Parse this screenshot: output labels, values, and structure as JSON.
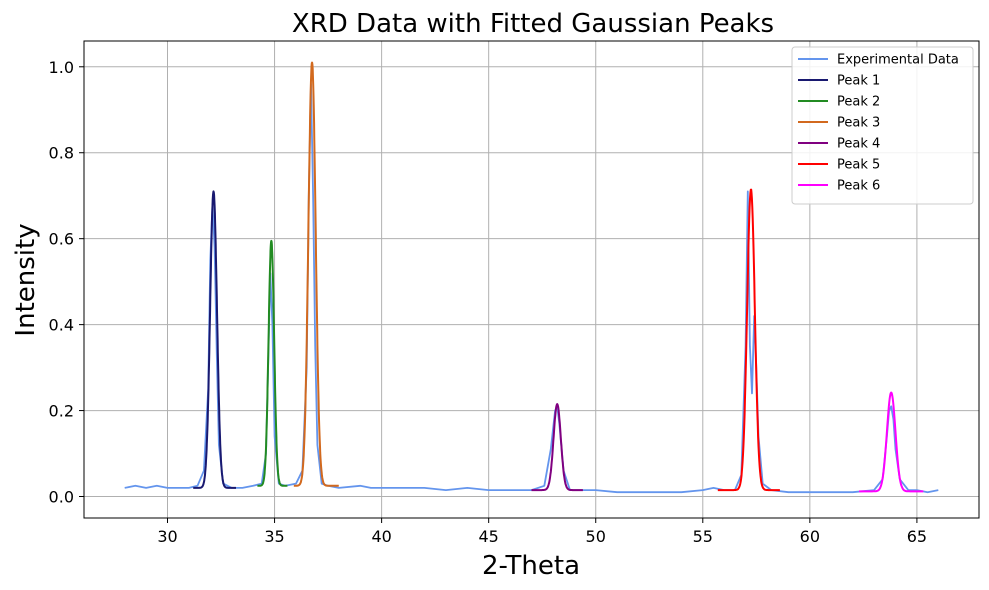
{
  "chart_data": {
    "type": "line",
    "title": "XRD Data with Fitted Gaussian Peaks",
    "xlabel": "2-Theta",
    "ylabel": "Intensity",
    "xlim": [
      26.1,
      67.9
    ],
    "ylim": [
      -0.05,
      1.06
    ],
    "xticks": [
      30,
      35,
      40,
      45,
      50,
      55,
      60,
      65
    ],
    "yticks": [
      0.0,
      0.2,
      0.4,
      0.6,
      0.8,
      1.0
    ],
    "ytick_labels": [
      "0.0",
      "0.2",
      "0.4",
      "0.6",
      "0.8",
      "1.0"
    ],
    "grid": true,
    "legend_position": "top-right",
    "series": [
      {
        "name": "Experimental Data",
        "color": "#6495ED",
        "x": [
          28.0,
          28.5,
          29.0,
          29.5,
          30.0,
          30.5,
          31.0,
          31.4,
          31.7,
          31.9,
          32.0,
          32.1,
          32.2,
          32.3,
          32.4,
          32.6,
          33.0,
          33.5,
          34.0,
          34.4,
          34.6,
          34.7,
          34.8,
          34.9,
          35.0,
          35.2,
          35.5,
          36.0,
          36.3,
          36.5,
          36.6,
          36.7,
          36.8,
          36.9,
          37.0,
          37.2,
          37.5,
          38.0,
          39.0,
          39.5,
          40.0,
          41.0,
          42.0,
          43.0,
          44.0,
          45.0,
          46.0,
          47.0,
          47.6,
          47.9,
          48.1,
          48.2,
          48.3,
          48.5,
          48.8,
          49.2,
          50.0,
          51.0,
          52.0,
          53.0,
          54.0,
          55.0,
          55.5,
          56.0,
          56.5,
          56.8,
          57.0,
          57.1,
          57.2,
          57.3,
          57.4,
          57.5,
          57.6,
          57.8,
          58.2,
          59.0,
          60.0,
          61.0,
          62.0,
          63.0,
          63.4,
          63.6,
          63.7,
          63.8,
          63.9,
          64.0,
          64.2,
          64.6,
          65.0,
          65.5,
          66.0
        ],
        "y": [
          0.02,
          0.025,
          0.02,
          0.025,
          0.02,
          0.02,
          0.02,
          0.025,
          0.06,
          0.25,
          0.55,
          0.68,
          0.58,
          0.33,
          0.12,
          0.03,
          0.02,
          0.02,
          0.025,
          0.03,
          0.1,
          0.3,
          0.52,
          0.4,
          0.14,
          0.03,
          0.025,
          0.03,
          0.06,
          0.3,
          0.7,
          0.96,
          0.7,
          0.35,
          0.12,
          0.03,
          0.025,
          0.02,
          0.025,
          0.02,
          0.02,
          0.02,
          0.02,
          0.015,
          0.02,
          0.015,
          0.015,
          0.015,
          0.025,
          0.11,
          0.2,
          0.21,
          0.17,
          0.06,
          0.015,
          0.015,
          0.015,
          0.01,
          0.01,
          0.01,
          0.01,
          0.015,
          0.02,
          0.015,
          0.015,
          0.05,
          0.35,
          0.71,
          0.35,
          0.24,
          0.42,
          0.3,
          0.14,
          0.03,
          0.015,
          0.01,
          0.01,
          0.01,
          0.01,
          0.015,
          0.04,
          0.14,
          0.2,
          0.21,
          0.18,
          0.11,
          0.04,
          0.015,
          0.015,
          0.01,
          0.015
        ]
      },
      {
        "name": "Peak 1",
        "color": "#191970",
        "center": 32.15,
        "amplitude": 0.69,
        "sigma": 0.16,
        "baseline": 0.02,
        "range": [
          31.2,
          33.2
        ]
      },
      {
        "name": "Peak 2",
        "color": "#228B22",
        "center": 34.85,
        "amplitude": 0.57,
        "sigma": 0.13,
        "baseline": 0.025,
        "range": [
          34.2,
          35.6
        ]
      },
      {
        "name": "Peak 3",
        "color": "#D2691E",
        "center": 36.75,
        "amplitude": 0.985,
        "sigma": 0.17,
        "baseline": 0.025,
        "range": [
          35.9,
          38.0
        ]
      },
      {
        "name": "Peak 4",
        "color": "#800080",
        "center": 48.2,
        "amplitude": 0.2,
        "sigma": 0.17,
        "baseline": 0.015,
        "range": [
          47.0,
          49.4
        ]
      },
      {
        "name": "Peak 5",
        "color": "#FF0000",
        "center": 57.25,
        "amplitude": 0.7,
        "sigma": 0.18,
        "baseline": 0.015,
        "range": [
          55.7,
          58.6
        ]
      },
      {
        "name": "Peak 6",
        "color": "#FF00FF",
        "center": 63.8,
        "amplitude": 0.23,
        "sigma": 0.2,
        "baseline": 0.012,
        "range": [
          62.3,
          65.3
        ]
      }
    ]
  }
}
